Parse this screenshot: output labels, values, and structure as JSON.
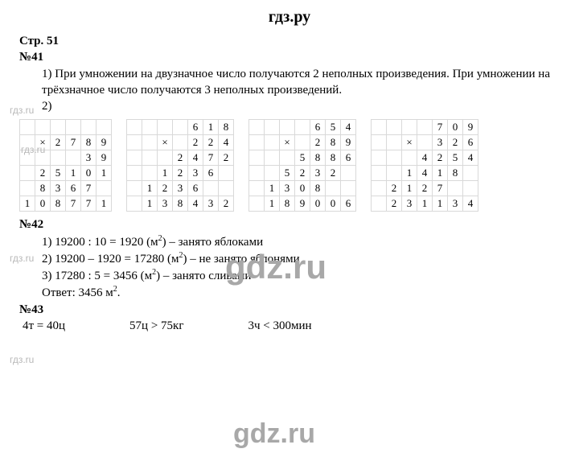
{
  "header": {
    "site": "гдз.ру"
  },
  "page_label": "Стр. 51",
  "q41": {
    "num": "№41",
    "p1": "1) При умножении на двузначное число получаются 2 неполных произведения. При умножении на трёхзначное число получаются 3 неполных произведений.",
    "p2": "2)",
    "mults": [
      {
        "rows": [
          [
            "",
            "",
            "",
            "",
            "",
            ""
          ],
          [
            "",
            "×",
            "2",
            "7",
            "8",
            "9"
          ],
          [
            "",
            "",
            "",
            "",
            "3",
            "9"
          ],
          [
            "",
            "2",
            "5",
            "1",
            "0",
            "1"
          ],
          [
            "",
            "8",
            "3",
            "6",
            "7",
            ""
          ],
          [
            "1",
            "0",
            "8",
            "7",
            "7",
            "1"
          ]
        ],
        "hr_after": [
          2,
          4
        ]
      },
      {
        "rows": [
          [
            "",
            "",
            "",
            "",
            "6",
            "1",
            "8"
          ],
          [
            "",
            "",
            "×",
            "",
            "2",
            "2",
            "4"
          ],
          [
            "",
            "",
            "",
            "2",
            "4",
            "7",
            "2"
          ],
          [
            "",
            "",
            "1",
            "2",
            "3",
            "6",
            ""
          ],
          [
            "",
            "1",
            "2",
            "3",
            "6",
            "",
            ""
          ],
          [
            "",
            "1",
            "3",
            "8",
            "4",
            "3",
            "2"
          ]
        ],
        "hr_after": [
          1,
          4
        ]
      },
      {
        "rows": [
          [
            "",
            "",
            "",
            "",
            "6",
            "5",
            "4"
          ],
          [
            "",
            "",
            "×",
            "",
            "2",
            "8",
            "9"
          ],
          [
            "",
            "",
            "",
            "5",
            "8",
            "8",
            "6"
          ],
          [
            "",
            "",
            "5",
            "2",
            "3",
            "2",
            ""
          ],
          [
            "",
            "1",
            "3",
            "0",
            "8",
            "",
            ""
          ],
          [
            "",
            "1",
            "8",
            "9",
            "0",
            "0",
            "6"
          ]
        ],
        "hr_after": [
          1,
          4
        ]
      },
      {
        "rows": [
          [
            "",
            "",
            "",
            "",
            "7",
            "0",
            "9"
          ],
          [
            "",
            "",
            "×",
            "",
            "3",
            "2",
            "6"
          ],
          [
            "",
            "",
            "",
            "4",
            "2",
            "5",
            "4"
          ],
          [
            "",
            "",
            "1",
            "4",
            "1",
            "8",
            ""
          ],
          [
            "",
            "2",
            "1",
            "2",
            "7",
            "",
            ""
          ],
          [
            "",
            "2",
            "3",
            "1",
            "1",
            "3",
            "4"
          ]
        ],
        "hr_after": [
          1,
          4
        ]
      }
    ]
  },
  "q42": {
    "num": "№42",
    "l1a": "1) 19200 : 10 = 1920 (м",
    "l1b": ") – занято яблоками",
    "l2a": "2) 19200 – 1920 = 17280 (м",
    "l2b": ") – не занято яблонями",
    "l3a": "3) 17280 : 5 = 3456 (м",
    "l3b": ") – занято сливами",
    "ans_a": "Ответ: 3456 м",
    "ans_b": "."
  },
  "q43": {
    "num": "№43",
    "c1": "4т = 40ц",
    "c2": "57ц > 75кг",
    "c3": "3ч < 300мин"
  },
  "watermarks": {
    "small": "гдз.ru",
    "big": "gdz.ru"
  },
  "style": {
    "cell_border": "#d9d9d9",
    "wm_color_small": "#b8b8b8",
    "wm_color_big": "#a8a8a8",
    "bg": "#ffffff",
    "text": "#000000"
  }
}
